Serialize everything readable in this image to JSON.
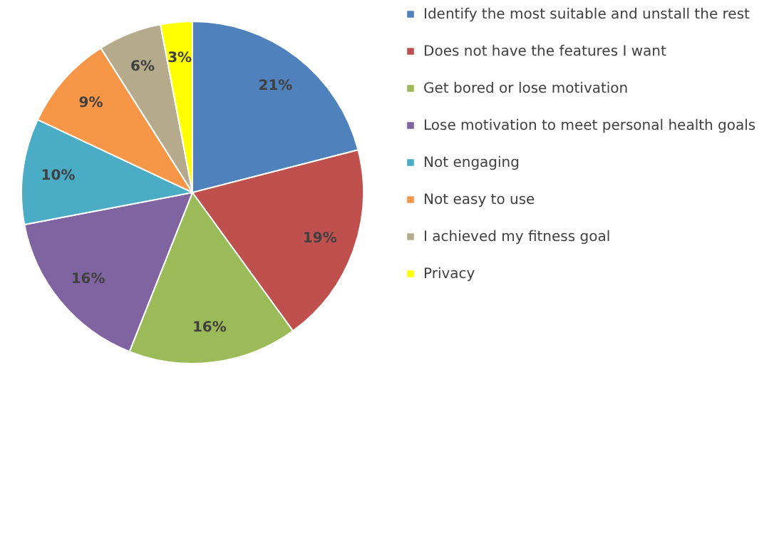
{
  "chart_data": {
    "type": "pie",
    "categories": [
      "Identify the most suitable and unstall the rest",
      "Does not have the features I want",
      "Get bored or lose motivation",
      "Lose motivation to meet personal health goals",
      "Not engaging",
      "Not easy to use",
      "I achieved my fitness goal",
      "Privacy"
    ],
    "values": [
      21,
      19,
      16,
      16,
      10,
      9,
      6,
      3
    ],
    "value_labels": [
      "21%",
      "19%",
      "16%",
      "16%",
      "10%",
      "9%",
      "6%",
      "3%"
    ],
    "colors": [
      "#4f81bd",
      "#c0504d",
      "#9bbb59",
      "#8064a2",
      "#4bacc6",
      "#f79646",
      "#b5aa8c",
      "#ffff00"
    ],
    "legend": "right"
  }
}
